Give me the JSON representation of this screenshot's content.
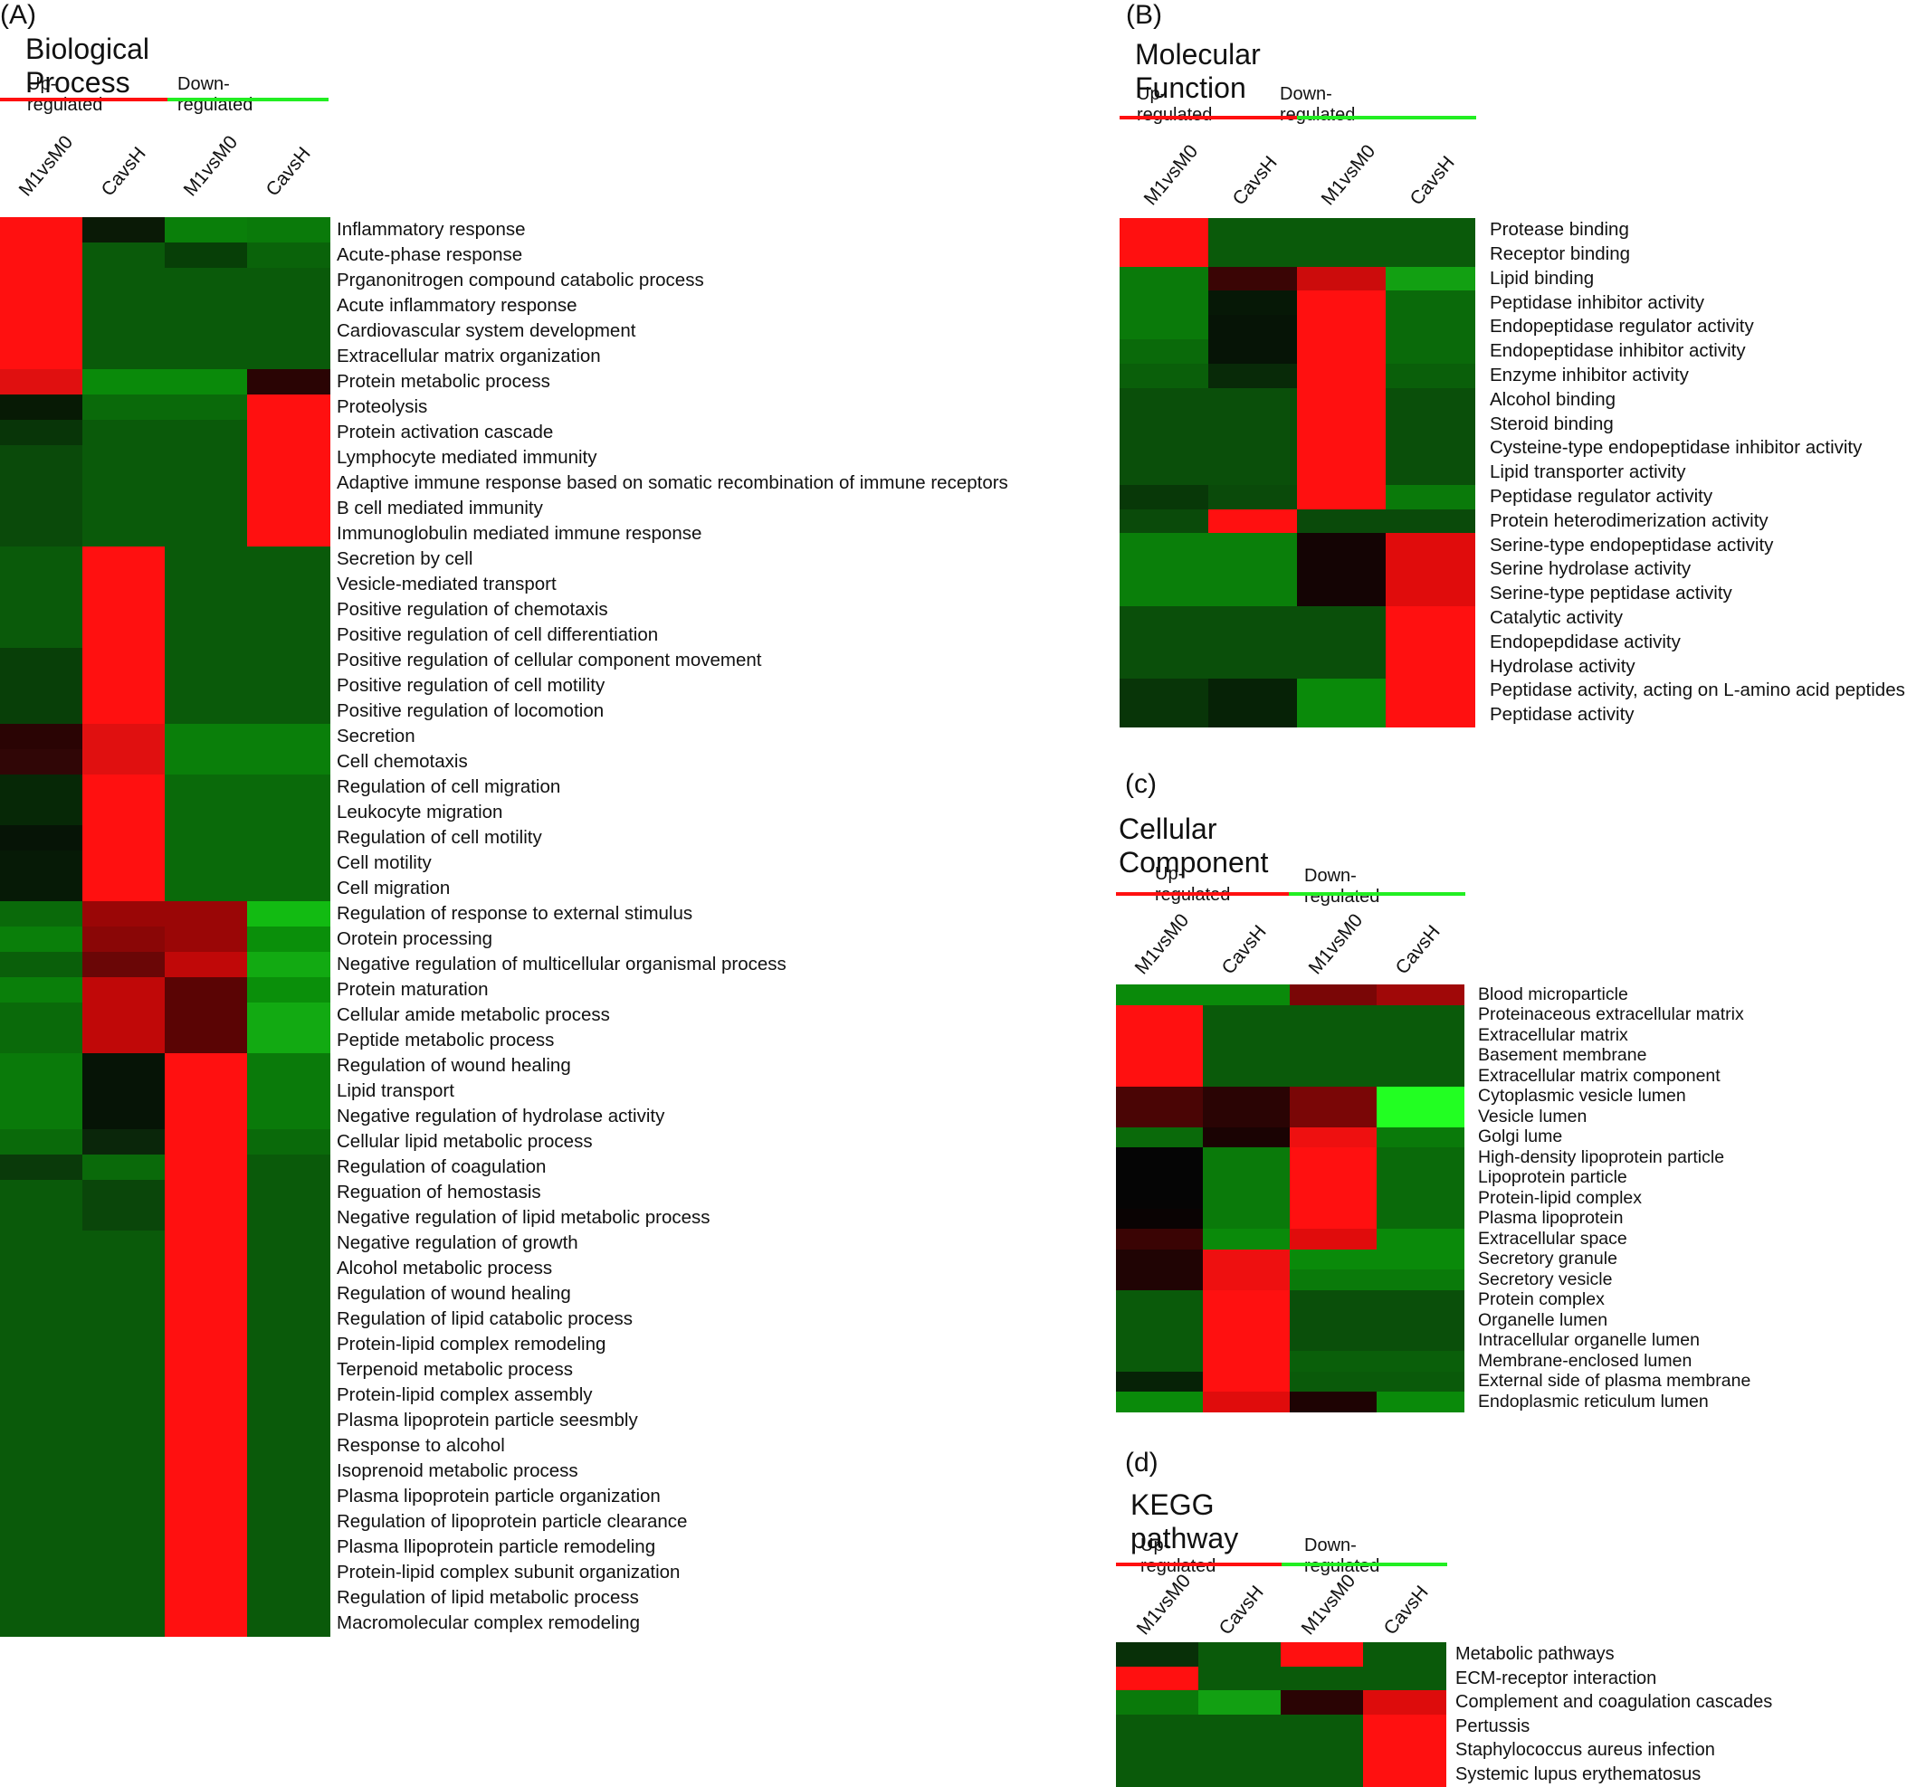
{
  "legend": {
    "up": "Up-regulated",
    "down": "Down-regulated",
    "up_color": "#ff1010",
    "down_color": "#22ee22"
  },
  "columns": [
    "M1vsM0",
    "CavsH",
    "M1vsM0",
    "CavsH"
  ],
  "chart_data": [
    {
      "type": "heatmap",
      "panel": "(A)",
      "title": "Biological Process",
      "rows": [
        "Inflammatory response",
        "Acute-phase response",
        "Prganonitrogen compound catabolic process",
        "Acute inflammatory response",
        "Cardiovascular system development",
        "Extracellular matrix organization",
        "Protein metabolic process",
        "Proteolysis",
        "Protein activation cascade",
        "Lymphocyte mediated immunity",
        "Adaptive immune response based on somatic recombination of immune receptors",
        "B cell mediated immunity",
        "Immunoglobulin mediated immune response",
        "Secretion by cell",
        "Vesicle-mediated transport",
        "Positive regulation of chemotaxis",
        "Positive regulation of cell differentiation",
        "Positive regulation of cellular component movement",
        "Positive regulation of cell motility",
        "Positive regulation of locomotion",
        "Secretion",
        "Cell chemotaxis",
        "Regulation of cell migration",
        "Leukocyte migration",
        "Regulation of cell motility",
        "Cell motility",
        "Cell migration",
        "Regulation of response to external stimulus",
        "Orotein processing",
        "Negative regulation of multicellular organismal process",
        "Protein maturation",
        "Cellular amide metabolic process",
        "Peptide metabolic process",
        "Regulation of wound healing",
        "Lipid transport",
        "Negative regulation of hydrolase activity",
        "Cellular lipid metabolic process",
        "Regulation of coagulation",
        "Reguation of hemostasis",
        "Negative regulation of lipid metabolic process",
        "Negative regulation of growth",
        "Alcohol metabolic process",
        "Regulation of wound healing",
        "Regulation of lipid catabolic process",
        "Protein-lipid complex remodeling",
        "Terpenoid metabolic process",
        "Protein-lipid complex assembly",
        "Plasma lipoprotein particle seesmbly",
        "Response to alcohol",
        "Isoprenoid metabolic process",
        "Plasma lipoprotein particle organization",
        "Regulation of lipoprotein particle clearance",
        "Plasma llipoprotein particle remodeling",
        "Protein-lipid complex subunit organization",
        "Regulation of lipid metabolic process",
        "Macromolecular complex remodeling"
      ],
      "colors": [
        [
          "#ff1010",
          "#0a1a06",
          "#0a7f0a",
          "#0a7a0a"
        ],
        [
          "#ff1010",
          "#0a5a0a",
          "#073f07",
          "#0a630a"
        ],
        [
          "#ff1010",
          "#0a5a0a",
          "#0a5a0a",
          "#0a5a0a"
        ],
        [
          "#ff1010",
          "#0a5a0a",
          "#0a5a0a",
          "#0a5a0a"
        ],
        [
          "#ff1010",
          "#0a5a0a",
          "#0a5a0a",
          "#0a5a0a"
        ],
        [
          "#ff1010",
          "#0a5a0a",
          "#0a5a0a",
          "#0a5a0a"
        ],
        [
          "#e01010",
          "#0a8a0a",
          "#0a8a0a",
          "#2a0404"
        ],
        [
          "#071a05",
          "#0a6a0a",
          "#0a6a0a",
          "#ff1010"
        ],
        [
          "#083508",
          "#0a5a0a",
          "#0a5a0a",
          "#ff1010"
        ],
        [
          "#0a4a0a",
          "#0a5a0a",
          "#0a5a0a",
          "#ff1010"
        ],
        [
          "#0a4a0a",
          "#0a5a0a",
          "#0a5a0a",
          "#ff1010"
        ],
        [
          "#0a4a0a",
          "#0a5a0a",
          "#0a5a0a",
          "#ff1010"
        ],
        [
          "#0a4a0a",
          "#0a5a0a",
          "#0a5a0a",
          "#ff1010"
        ],
        [
          "#0a5a0a",
          "#ff1010",
          "#0a5a0a",
          "#0a5a0a"
        ],
        [
          "#0a5a0a",
          "#ff1010",
          "#0a5a0a",
          "#0a5a0a"
        ],
        [
          "#0a5a0a",
          "#ff1010",
          "#0a5a0a",
          "#0a5a0a"
        ],
        [
          "#0a5a0a",
          "#ff1010",
          "#0a5a0a",
          "#0a5a0a"
        ],
        [
          "#083f08",
          "#ff1010",
          "#0a5a0a",
          "#0a5a0a"
        ],
        [
          "#083f08",
          "#ff1010",
          "#0a5a0a",
          "#0a5a0a"
        ],
        [
          "#083f08",
          "#ff1010",
          "#0a5a0a",
          "#0a5a0a"
        ],
        [
          "#2a0404",
          "#e01010",
          "#0a7f0a",
          "#0a7f0a"
        ],
        [
          "#300606",
          "#e01010",
          "#0a7f0a",
          "#0a7f0a"
        ],
        [
          "#062806",
          "#ff1010",
          "#0a6a0a",
          "#0a6a0a"
        ],
        [
          "#062806",
          "#ff1010",
          "#0a6a0a",
          "#0a6a0a"
        ],
        [
          "#061406",
          "#ff1010",
          "#0a6a0a",
          "#0a6a0a"
        ],
        [
          "#061a06",
          "#ff1010",
          "#0a6a0a",
          "#0a6a0a"
        ],
        [
          "#061a06",
          "#ff1010",
          "#0a6a0a",
          "#0a6a0a"
        ],
        [
          "#0a6a0a",
          "#9a0606",
          "#9a0606",
          "#12bb12"
        ],
        [
          "#0a7f0a",
          "#8a0606",
          "#9a0606",
          "#0a8f0a"
        ],
        [
          "#0a5f0a",
          "#6a0606",
          "#c00808",
          "#12aa12"
        ],
        [
          "#0a7f0a",
          "#c00808",
          "#5a0404",
          "#0a8f0a"
        ],
        [
          "#0a6a0a",
          "#c00808",
          "#5a0404",
          "#12aa12"
        ],
        [
          "#0a6a0a",
          "#c00808",
          "#5a0404",
          "#12aa12"
        ],
        [
          "#0a7a0a",
          "#061406",
          "#ff1010",
          "#0a7a0a"
        ],
        [
          "#0a7a0a",
          "#061406",
          "#ff1010",
          "#0a7a0a"
        ],
        [
          "#0a7a0a",
          "#061406",
          "#ff1010",
          "#0a7a0a"
        ],
        [
          "#0a6a0a",
          "#0a260a",
          "#ff1010",
          "#0a6a0a"
        ],
        [
          "#0a3a0a",
          "#0a6a0a",
          "#ff1010",
          "#0a5a0a"
        ],
        [
          "#0a5a0a",
          "#0a460a",
          "#ff1010",
          "#0a5a0a"
        ],
        [
          "#0a5a0a",
          "#0a460a",
          "#ff1010",
          "#0a5a0a"
        ],
        [
          "#0a5a0a",
          "#0a5a0a",
          "#ff1010",
          "#0a5a0a"
        ],
        [
          "#0a5a0a",
          "#0a5a0a",
          "#ff1010",
          "#0a5a0a"
        ],
        [
          "#0a5a0a",
          "#0a5a0a",
          "#ff1010",
          "#0a5a0a"
        ],
        [
          "#0a5a0a",
          "#0a5a0a",
          "#ff1010",
          "#0a5a0a"
        ],
        [
          "#0a5a0a",
          "#0a5a0a",
          "#ff1010",
          "#0a5a0a"
        ],
        [
          "#0a5a0a",
          "#0a5a0a",
          "#ff1010",
          "#0a5a0a"
        ],
        [
          "#0a5a0a",
          "#0a5a0a",
          "#ff1010",
          "#0a5a0a"
        ],
        [
          "#0a5a0a",
          "#0a5a0a",
          "#ff1010",
          "#0a5a0a"
        ],
        [
          "#0a5a0a",
          "#0a5a0a",
          "#ff1010",
          "#0a5a0a"
        ],
        [
          "#0a5a0a",
          "#0a5a0a",
          "#ff1010",
          "#0a5a0a"
        ],
        [
          "#0a5a0a",
          "#0a5a0a",
          "#ff1010",
          "#0a5a0a"
        ],
        [
          "#0a5a0a",
          "#0a5a0a",
          "#ff1010",
          "#0a5a0a"
        ],
        [
          "#0a5a0a",
          "#0a5a0a",
          "#ff1010",
          "#0a5a0a"
        ],
        [
          "#0a5a0a",
          "#0a5a0a",
          "#ff1010",
          "#0a5a0a"
        ],
        [
          "#0a5a0a",
          "#0a5a0a",
          "#ff1010",
          "#0a5a0a"
        ],
        [
          "#0a5a0a",
          "#0a5a0a",
          "#ff1010",
          "#0a5a0a"
        ]
      ]
    },
    {
      "type": "heatmap",
      "panel": "(B)",
      "title": "Molecular Function",
      "rows": [
        "Protease binding",
        "Receptor binding",
        "Lipid binding",
        "Peptidase inhibitor activity",
        "Endopeptidase regulator activity",
        "Endopeptidase inhibitor activity",
        "Enzyme inhibitor activity",
        "Alcohol binding",
        "Steroid binding",
        "Cysteine-type endopeptidase inhibitor activity",
        "Lipid transporter activity",
        "Peptidase regulator activity",
        "Protein heterodimerization activity",
        "Serine-type endopeptidase activity",
        "Serine hydrolase activity",
        "Serine-type peptidase activity",
        "Catalytic activity",
        "Endopepdidase activity",
        "Hydrolase activity",
        "Peptidase activity, acting on L-amino acid peptides",
        "Peptidase activity"
      ],
      "colors": [
        [
          "#ff1010",
          "#0a5a0a",
          "#0a5a0a",
          "#0a5a0a"
        ],
        [
          "#ff1010",
          "#0a5a0a",
          "#0a5a0a",
          "#0a5a0a"
        ],
        [
          "#0a7a0a",
          "#3a0505",
          "#cc0c0c",
          "#12a012"
        ],
        [
          "#0a7a0a",
          "#061806",
          "#ff1010",
          "#0a6a0a"
        ],
        [
          "#0a7a0a",
          "#061406",
          "#ff1010",
          "#0a6a0a"
        ],
        [
          "#0a6a0a",
          "#061406",
          "#ff1010",
          "#0a6a0a"
        ],
        [
          "#0a5f0a",
          "#082a08",
          "#ff1010",
          "#0a5f0a"
        ],
        [
          "#0a4f0a",
          "#0a4f0a",
          "#ff1010",
          "#0a4f0a"
        ],
        [
          "#0a4f0a",
          "#0a4f0a",
          "#ff1010",
          "#0a4f0a"
        ],
        [
          "#0a4f0a",
          "#0a4f0a",
          "#ff1010",
          "#0a4f0a"
        ],
        [
          "#0a4f0a",
          "#0a4f0a",
          "#ff1010",
          "#0a4f0a"
        ],
        [
          "#083808",
          "#0a4a0a",
          "#ff1010",
          "#0a7a0a"
        ],
        [
          "#0a4a0a",
          "#ff1010",
          "#0a4a0a",
          "#0a4a0a"
        ],
        [
          "#0a7f0a",
          "#0a7f0a",
          "#140404",
          "#e00c0c"
        ],
        [
          "#0a7f0a",
          "#0a7f0a",
          "#140404",
          "#e00c0c"
        ],
        [
          "#0a7f0a",
          "#0a7f0a",
          "#140404",
          "#e00c0c"
        ],
        [
          "#0a4f0a",
          "#0a4f0a",
          "#0a4f0a",
          "#ff1010"
        ],
        [
          "#0a4f0a",
          "#0a4f0a",
          "#0a4f0a",
          "#ff1010"
        ],
        [
          "#0a4f0a",
          "#0a4f0a",
          "#0a4f0a",
          "#ff1010"
        ],
        [
          "#083508",
          "#062206",
          "#0a8a0a",
          "#ff1010"
        ],
        [
          "#083508",
          "#062206",
          "#0a8a0a",
          "#ff1010"
        ]
      ]
    },
    {
      "type": "heatmap",
      "panel": "(c)",
      "title": "Cellular Component",
      "rows": [
        "Blood microparticle",
        "Proteinaceous extracellular matrix",
        "Extracellular matrix",
        "Basement membrane",
        "Extracellular matrix component",
        "Cytoplasmic vesicle lumen",
        "Vesicle lumen",
        "Golgi lume",
        "High-density lipoprotein particle",
        "Lipoprotein particle",
        "Protein-lipid complex",
        "Plasma lipoprotein",
        "Extracellular space",
        "Secretory granule",
        "Secretory vesicle",
        "Protein complex",
        "Organelle lumen",
        "Intracellular organelle lumen",
        "Membrane-enclosed lumen",
        "External side of plasma membrane",
        "Endoplasmic reticulum lumen"
      ],
      "colors": [
        [
          "#0a8a0a",
          "#0a8a0a",
          "#7a0606",
          "#a00808"
        ],
        [
          "#ff1010",
          "#0a5a0a",
          "#0a5a0a",
          "#0a5a0a"
        ],
        [
          "#ff1010",
          "#0a5a0a",
          "#0a5a0a",
          "#0a5a0a"
        ],
        [
          "#ff1010",
          "#0a5a0a",
          "#0a5a0a",
          "#0a5a0a"
        ],
        [
          "#ff1010",
          "#0a5a0a",
          "#0a5a0a",
          "#0a5a0a"
        ],
        [
          "#4a0505",
          "#2a0404",
          "#7a0606",
          "#22ff22"
        ],
        [
          "#4a0505",
          "#2a0404",
          "#7a0606",
          "#22ff22"
        ],
        [
          "#0a6a0a",
          "#1a0303",
          "#ee1010",
          "#0a7a0a"
        ],
        [
          "#050505",
          "#0a7a0a",
          "#ff1010",
          "#0a6a0a"
        ],
        [
          "#050505",
          "#0a7a0a",
          "#ff1010",
          "#0a6a0a"
        ],
        [
          "#050505",
          "#0a7a0a",
          "#ff1010",
          "#0a6a0a"
        ],
        [
          "#0a0303",
          "#0a7a0a",
          "#ff1010",
          "#0a6a0a"
        ],
        [
          "#3a0404",
          "#0a8a0a",
          "#e00c0c",
          "#0a8a0a"
        ],
        [
          "#200404",
          "#ee1010",
          "#0a8a0a",
          "#0a8a0a"
        ],
        [
          "#200404",
          "#ee1010",
          "#0a7a0a",
          "#0a7a0a"
        ],
        [
          "#0a5a0a",
          "#ff1010",
          "#0a4f0a",
          "#0a4f0a"
        ],
        [
          "#0a5a0a",
          "#ff1010",
          "#0a4f0a",
          "#0a4f0a"
        ],
        [
          "#0a5a0a",
          "#ff1010",
          "#0a4f0a",
          "#0a4f0a"
        ],
        [
          "#0a5a0a",
          "#ff1010",
          "#0a5f0a",
          "#0a5f0a"
        ],
        [
          "#062206",
          "#ff1010",
          "#0a5a0a",
          "#0a5a0a"
        ],
        [
          "#0a8a0a",
          "#e00c0c",
          "#1e0303",
          "#0a8a0a"
        ]
      ]
    },
    {
      "type": "heatmap",
      "panel": "(d)",
      "title": "KEGG pathway",
      "rows": [
        "Metabolic pathways",
        "ECM-receptor interaction",
        "Complement and coagulation cascades",
        "Pertussis",
        "Staphylococcus aureus infection",
        "Systemic lupus erythematosus"
      ],
      "colors": [
        [
          "#083008",
          "#0a5a0a",
          "#ff1010",
          "#0a5a0a"
        ],
        [
          "#ff1010",
          "#0a5a0a",
          "#0a5a0a",
          "#0a5a0a"
        ],
        [
          "#0a7a0a",
          "#12a012",
          "#2a0404",
          "#dd0c0c"
        ],
        [
          "#0a5a0a",
          "#0a5a0a",
          "#0a5a0a",
          "#ff1010"
        ],
        [
          "#0a5a0a",
          "#0a5a0a",
          "#0a5a0a",
          "#ff1010"
        ],
        [
          "#0a5a0a",
          "#0a5a0a",
          "#0a5a0a",
          "#ff1010"
        ]
      ]
    }
  ]
}
